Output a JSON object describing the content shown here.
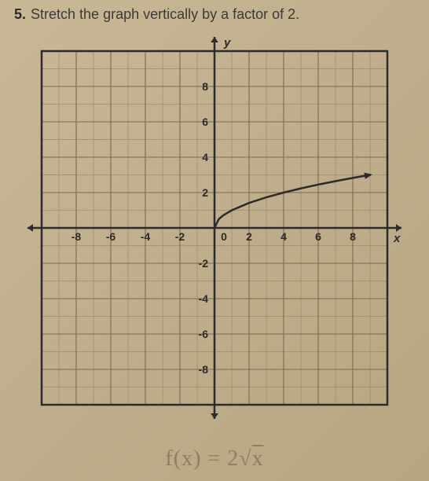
{
  "question": {
    "number": "5.",
    "text": "Stretch the graph vertically by a factor of 2."
  },
  "graph": {
    "type": "line",
    "xlim": [
      -10,
      10
    ],
    "ylim": [
      -10,
      10
    ],
    "xtick_step": 2,
    "ytick_step": 2,
    "xticks_labeled": [
      -8,
      -6,
      -4,
      -2,
      2,
      4,
      6,
      8
    ],
    "yticks_labeled": [
      -8,
      -6,
      -4,
      -2,
      2,
      4,
      6,
      8
    ],
    "origin_label": "0",
    "xlabel": "x",
    "ylabel": "y",
    "grid_minor_step": 1,
    "grid_major_step": 2,
    "grid_minor_color": "#9c8b6a",
    "grid_major_color": "#7a6b4e",
    "axis_color": "#2b2b2b",
    "curve_color": "#2b2b2b",
    "background_color": "#c4b290",
    "label_color": "#2b2b2b",
    "label_fontsize": 14,
    "curve_function": "sqrt(x)",
    "curve_points": [
      [
        0,
        0
      ],
      [
        0.25,
        0.5
      ],
      [
        0.5,
        0.707
      ],
      [
        1,
        1
      ],
      [
        2,
        1.414
      ],
      [
        3,
        1.732
      ],
      [
        4,
        2
      ],
      [
        5,
        2.236
      ],
      [
        6,
        2.449
      ],
      [
        7,
        2.646
      ],
      [
        8,
        2.828
      ],
      [
        9,
        3
      ]
    ],
    "curve_stroke_width": 2.5,
    "axis_stroke_width": 2.5,
    "border_stroke_width": 2.5
  },
  "handwritten_answer": {
    "text": "f(x) = 2√x",
    "color": "#8a6a5a",
    "fontsize": 28
  }
}
